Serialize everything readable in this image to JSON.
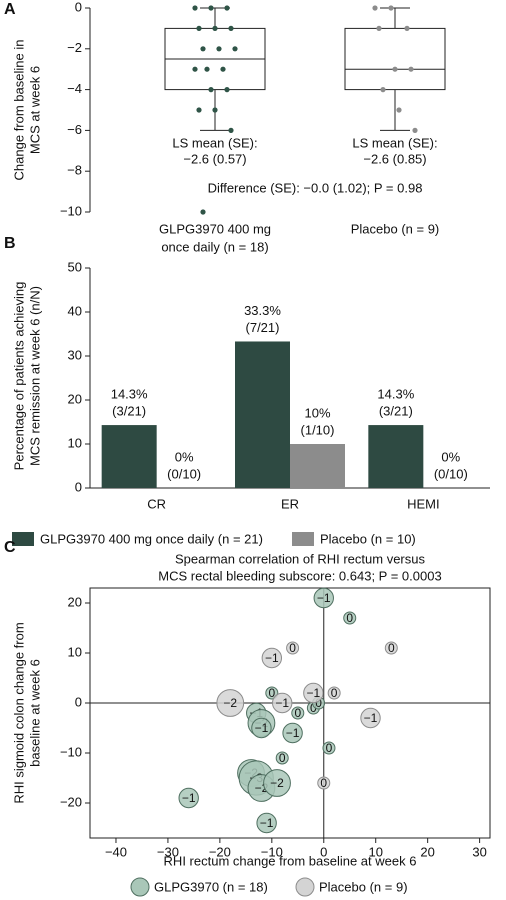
{
  "chart_data": [
    {
      "type": "box",
      "panel_label": "A",
      "y_label": [
        "Change from baseline in",
        "MCS at week 6"
      ],
      "categories": [
        [
          "GLPG3970 400 mg",
          "once daily (n = 18)"
        ],
        [
          "Placebo (n = 9)"
        ]
      ],
      "ylim": [
        -10,
        0
      ],
      "yticks": [
        0,
        {
          "value": -2,
          "label": "−2"
        },
        {
          "value": -4,
          "label": "−4"
        },
        {
          "value": -6,
          "label": "−6"
        },
        {
          "value": -8,
          "label": "−8"
        },
        {
          "value": -10,
          "label": "−10"
        }
      ],
      "boxes": [
        {
          "whisker_low": -6,
          "q1": -4,
          "median": -2.5,
          "q3": -1,
          "whisker_high": 0
        },
        {
          "whisker_low": -6,
          "q1": -4,
          "median": -3,
          "q3": -1,
          "whisker_high": 0
        }
      ],
      "points": [
        [
          0,
          0,
          0,
          -1,
          -1,
          -1,
          -2,
          -2,
          -2,
          -3,
          -3,
          -3,
          -4,
          -4,
          -5,
          -5,
          -6,
          -10
        ],
        [
          0,
          0,
          -1,
          -1,
          -3,
          -3,
          -4,
          -5,
          -6
        ]
      ],
      "point_colors": [
        "#2f5447",
        "#8c8c8c"
      ],
      "ls_means": [
        [
          "LS mean (SE):",
          "−2.6 (0.57)"
        ],
        [
          "LS mean (SE):",
          "−2.6 (0.85)"
        ]
      ],
      "difference": "Difference (SE): −0.0 (1.02); P = 0.98"
    },
    {
      "type": "bar",
      "panel_label": "B",
      "y_label": [
        "Percentage of patients achieving",
        "MCS remission at week 6 (n/N)"
      ],
      "categories": [
        "CR",
        "ER",
        "HEMI"
      ],
      "ylim": [
        0,
        50
      ],
      "yticks": [
        0,
        10,
        20,
        30,
        40,
        50
      ],
      "series": [
        {
          "name": "GLPG3970 400 mg once daily (n = 21)",
          "color": "#2e4a42",
          "values": [
            14.3,
            33.3,
            14.3
          ],
          "value_labels": [
            "14.3%",
            "33.3%",
            "14.3%"
          ],
          "count_labels": [
            "(3/21)",
            "(7/21)",
            "(3/21)"
          ]
        },
        {
          "name": "Placebo (n = 10)",
          "color": "#8c8c8c",
          "values": [
            0,
            10,
            0
          ],
          "value_labels": [
            "0%",
            "10%",
            "0%"
          ],
          "count_labels": [
            "(0/10)",
            "(1/10)",
            "(0/10)"
          ]
        }
      ]
    },
    {
      "type": "bubble",
      "panel_label": "C",
      "title": [
        "Spearman correlation of RHI rectum versus",
        "MCS rectal bleeding subscore: 0.643; P = 0.0003"
      ],
      "x_label": "RHI rectum change from baseline at week 6",
      "y_label": [
        "RHI sigmoid colon change from",
        "baseline at week 6"
      ],
      "xlim": [
        -45,
        32
      ],
      "xticks": [
        {
          "value": -40,
          "label": "−40"
        },
        {
          "value": -30,
          "label": "−30"
        },
        {
          "value": -20,
          "label": "−20"
        },
        {
          "value": -10,
          "label": "−10"
        },
        0,
        10,
        20,
        30
      ],
      "ylim": [
        -27,
        23
      ],
      "yticks": [
        {
          "value": -20,
          "label": "−20"
        },
        {
          "value": -10,
          "label": "−10"
        },
        0,
        10,
        20
      ],
      "series": [
        {
          "name": "GLPG3970 (n = 18)",
          "color": "#a9c7b8",
          "stroke": "#4f6f60",
          "x": [
            0,
            5,
            -10,
            -13,
            -12,
            -6,
            -5,
            -2,
            1,
            -8,
            -14,
            -13,
            -12,
            -9,
            -26,
            -11,
            -12,
            -1
          ],
          "y": [
            21,
            17,
            2,
            -2,
            -4,
            -6,
            -2,
            -1,
            -9,
            -11,
            -14,
            -15,
            -17,
            -16,
            -19,
            -24,
            -5,
            0
          ],
          "values": [
            -1,
            0,
            0,
            -1,
            -2,
            -1,
            0,
            0,
            0,
            0,
            -2,
            -3,
            -2,
            -2,
            -1,
            -1,
            -1,
            0
          ],
          "value_labels": [
            "−1",
            "0",
            "0",
            "−1",
            "−2",
            "−1",
            "0",
            "0",
            "0",
            "0",
            "−2",
            "−3",
            "−2",
            "−2",
            "−1",
            "−1",
            "−1",
            "0"
          ]
        },
        {
          "name": "Placebo (n = 9)",
          "color": "#d4d4d4",
          "stroke": "#8c8c8c",
          "x": [
            -18,
            -10,
            -6,
            13,
            -8,
            -2,
            2,
            9,
            0
          ],
          "y": [
            0,
            9,
            11,
            11,
            0,
            2,
            2,
            -3,
            -16
          ],
          "values": [
            -2,
            -1,
            0,
            0,
            -1,
            -1,
            0,
            -1,
            0
          ],
          "value_labels": [
            "−2",
            "−1",
            "0",
            "0",
            "−1",
            "−1",
            "0",
            "−1",
            "0"
          ]
        }
      ]
    }
  ]
}
